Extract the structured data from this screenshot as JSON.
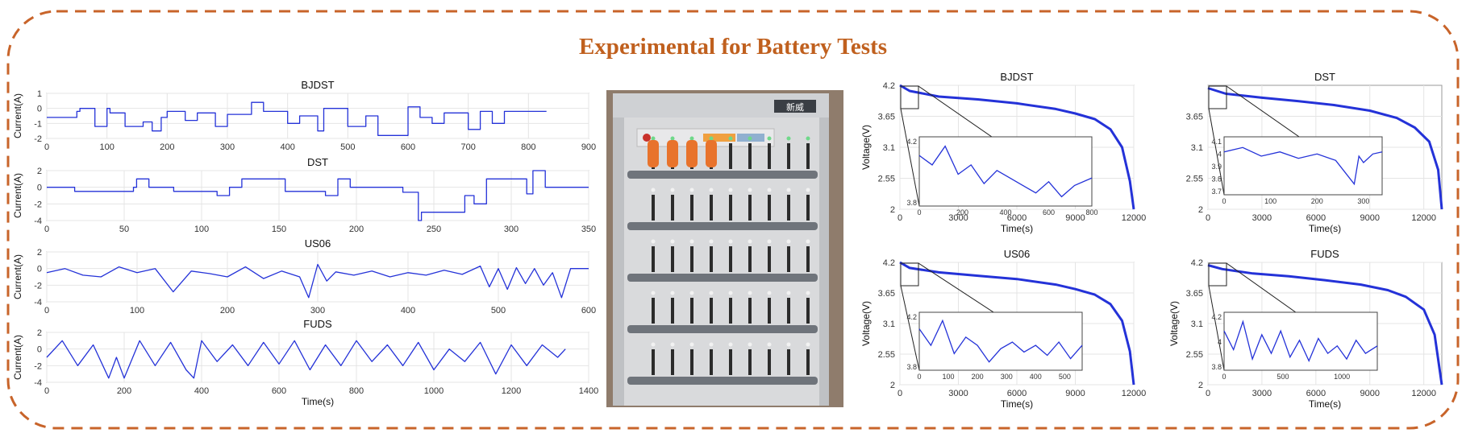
{
  "title": "Experimental for Battery Tests",
  "colors": {
    "border": "#c8642a",
    "title": "#c0601e",
    "trace": "#2432d8",
    "axis": "#333333"
  },
  "photo": {
    "cabinet_label": "新威"
  },
  "chart_data": [
    {
      "type": "line",
      "title": "BJDST",
      "xlabel": "",
      "ylabel": "Current(A)",
      "xlim": [
        0,
        900
      ],
      "xticks": [
        0,
        100,
        200,
        300,
        400,
        500,
        600,
        700,
        800,
        900
      ],
      "ylim": [
        -2,
        1
      ],
      "yticks": [
        1,
        0,
        -1,
        -2
      ],
      "ytick_labels": [
        "1",
        "0",
        "-1",
        "-2"
      ],
      "grid": true,
      "x": [
        0,
        50,
        50,
        55,
        55,
        80,
        80,
        100,
        100,
        105,
        105,
        130,
        130,
        160,
        160,
        175,
        175,
        190,
        190,
        200,
        200,
        230,
        230,
        250,
        250,
        280,
        280,
        300,
        300,
        340,
        340,
        360,
        360,
        400,
        400,
        420,
        420,
        450,
        450,
        460,
        460,
        500,
        500,
        530,
        530,
        550,
        550,
        600,
        600,
        620,
        620,
        640,
        640,
        660,
        660,
        700,
        700,
        720,
        720,
        740,
        740,
        760,
        760,
        830
      ],
      "y": [
        -0.6,
        -0.6,
        -0.2,
        -0.2,
        0,
        0,
        -1.2,
        -1.2,
        0,
        0,
        -0.3,
        -0.3,
        -1.2,
        -1.2,
        -0.9,
        -0.9,
        -1.5,
        -1.5,
        -0.6,
        -0.6,
        -0.2,
        -0.2,
        -0.8,
        -0.8,
        -0.3,
        -0.3,
        -1.2,
        -1.2,
        -0.4,
        -0.4,
        0.4,
        0.4,
        -0.2,
        -0.2,
        -1.0,
        -1.0,
        -0.5,
        -0.5,
        -1.5,
        -1.5,
        0,
        0,
        -1.2,
        -1.2,
        -0.5,
        -0.5,
        -1.8,
        -1.8,
        0.1,
        0.1,
        -0.6,
        -0.6,
        -1.0,
        -1.0,
        -0.3,
        -0.3,
        -1.4,
        -1.4,
        -0.2,
        -0.2,
        -1.0,
        -1.0,
        -0.2,
        -0.2
      ]
    },
    {
      "type": "line",
      "title": "DST",
      "xlabel": "",
      "ylabel": "Current(A)",
      "xlim": [
        0,
        350
      ],
      "xticks": [
        0,
        50,
        100,
        150,
        200,
        250,
        300,
        350
      ],
      "ylim": [
        -4,
        2
      ],
      "yticks": [
        2,
        0,
        -2,
        -4
      ],
      "ytick_labels": [
        "2",
        "0",
        "-2",
        "-4"
      ],
      "grid": true,
      "x": [
        0,
        18,
        18,
        56,
        56,
        58,
        58,
        66,
        66,
        82,
        82,
        110,
        110,
        118,
        118,
        126,
        126,
        154,
        154,
        180,
        180,
        188,
        188,
        196,
        196,
        230,
        230,
        240,
        240,
        242,
        242,
        270,
        270,
        276,
        276,
        284,
        284,
        310,
        310,
        314,
        314,
        322,
        322,
        350
      ],
      "y": [
        0,
        0,
        -0.5,
        -0.5,
        0,
        0,
        1,
        1,
        0,
        0,
        -0.5,
        -0.5,
        -1,
        -1,
        0,
        0,
        1,
        1,
        -0.5,
        -0.5,
        -1,
        -1,
        1,
        1,
        0,
        0,
        -0.6,
        -0.6,
        -4,
        -4,
        -3,
        -3,
        -1,
        -1,
        -2,
        -2,
        1,
        1,
        -0.8,
        -0.8,
        2,
        2,
        0,
        0
      ]
    },
    {
      "type": "line",
      "title": "US06",
      "xlabel": "",
      "ylabel": "Current(A)",
      "xlim": [
        0,
        600
      ],
      "xticks": [
        0,
        100,
        200,
        300,
        400,
        500,
        600
      ],
      "ylim": [
        -4,
        2
      ],
      "yticks": [
        2,
        0,
        -2,
        -4
      ],
      "ytick_labels": [
        "2",
        "0",
        "-2",
        "-4"
      ],
      "grid": true,
      "x": [
        0,
        20,
        40,
        60,
        80,
        100,
        120,
        140,
        160,
        180,
        200,
        220,
        240,
        260,
        280,
        290,
        300,
        310,
        320,
        340,
        360,
        380,
        400,
        420,
        440,
        460,
        480,
        490,
        500,
        510,
        520,
        530,
        540,
        550,
        560,
        570,
        580,
        590,
        600
      ],
      "y": [
        -0.5,
        0,
        -0.8,
        -1,
        0.2,
        -0.5,
        0,
        -2.8,
        -0.3,
        -0.6,
        -1,
        0.2,
        -1.2,
        -0.3,
        -1,
        -3.5,
        0.5,
        -1.5,
        -0.4,
        -0.8,
        -0.3,
        -1,
        -0.5,
        -0.8,
        -0.2,
        -0.7,
        0.3,
        -2.2,
        0,
        -2.5,
        0.1,
        -1.8,
        0,
        -2,
        -0.5,
        -3.5,
        0,
        0,
        0
      ]
    },
    {
      "type": "line",
      "title": "FUDS",
      "xlabel": "Time(s)",
      "ylabel": "Current(A)",
      "xlim": [
        0,
        1400
      ],
      "xticks": [
        0,
        200,
        400,
        600,
        800,
        1000,
        1200,
        1400
      ],
      "ylim": [
        -4,
        2
      ],
      "yticks": [
        2,
        0,
        -2,
        -4
      ],
      "ytick_labels": [
        "2",
        "0",
        "-2",
        "-4"
      ],
      "grid": true,
      "x": [
        0,
        40,
        80,
        120,
        160,
        180,
        200,
        240,
        280,
        320,
        360,
        380,
        400,
        440,
        480,
        520,
        560,
        600,
        640,
        680,
        720,
        760,
        800,
        840,
        880,
        920,
        960,
        1000,
        1040,
        1080,
        1120,
        1160,
        1200,
        1240,
        1280,
        1320,
        1340
      ],
      "y": [
        -1,
        1,
        -2,
        0.5,
        -3.5,
        -1,
        -3.5,
        1,
        -2,
        0.8,
        -2.5,
        -3.5,
        1,
        -1.5,
        0.5,
        -2,
        0.8,
        -1.8,
        1,
        -2.5,
        0.5,
        -2,
        1,
        -1.5,
        0.5,
        -2,
        0.8,
        -2.5,
        0,
        -1.5,
        0.8,
        -3,
        0.5,
        -2,
        0.5,
        -1,
        0
      ]
    },
    {
      "type": "line",
      "title": "BJDST",
      "xlabel": "Time(s)",
      "ylabel": "Voltage(V)",
      "xlim": [
        0,
        12000
      ],
      "xticks": [
        0,
        3000,
        6000,
        9000,
        12000
      ],
      "ylim": [
        2,
        4.2
      ],
      "yticks": [
        4.2,
        3.65,
        3.1,
        2.55,
        2
      ],
      "ytick_labels": [
        "4.2",
        "3.65",
        "3.1",
        "2.55",
        "2"
      ],
      "grid": true,
      "x": [
        0,
        500,
        2000,
        4000,
        6000,
        8000,
        9000,
        10000,
        10800,
        11400,
        11800,
        12000
      ],
      "y": [
        4.2,
        4.1,
        4.0,
        3.95,
        3.88,
        3.78,
        3.7,
        3.6,
        3.42,
        3.1,
        2.5,
        2.0
      ],
      "inset": {
        "xticks": [
          0,
          200,
          400,
          600,
          800
        ],
        "yticks": [
          "4.2",
          "3.8"
        ],
        "x": [
          0,
          60,
          120,
          180,
          240,
          300,
          360,
          420,
          480,
          540,
          600,
          660,
          720,
          800
        ],
        "y": [
          4.0,
          3.95,
          4.05,
          3.9,
          3.95,
          3.85,
          3.92,
          3.88,
          3.84,
          3.8,
          3.86,
          3.78,
          3.84,
          3.88
        ]
      }
    },
    {
      "type": "line",
      "title": "DST",
      "xlabel": "Time(s)",
      "ylabel": "",
      "xlim": [
        0,
        13000
      ],
      "xticks": [
        0,
        3000,
        6000,
        9000,
        12000
      ],
      "ylim": [
        2,
        4.2
      ],
      "yticks": [
        3.65,
        3.1,
        2.55,
        2
      ],
      "ytick_labels": [
        "3.65",
        "3.1",
        "2.55",
        "2"
      ],
      "grid": true,
      "x": [
        0,
        1000,
        3000,
        5000,
        7000,
        9000,
        10500,
        11500,
        12300,
        12800,
        13000
      ],
      "y": [
        4.15,
        4.05,
        3.98,
        3.92,
        3.85,
        3.75,
        3.62,
        3.45,
        3.2,
        2.7,
        2.0
      ],
      "inset": {
        "xticks": [
          0,
          100,
          200,
          300
        ],
        "yticks": [
          "4.1",
          "4",
          "3.9",
          "3.8",
          "3.7"
        ],
        "x": [
          0,
          40,
          80,
          120,
          160,
          200,
          240,
          280,
          290,
          300,
          320,
          340
        ],
        "y": [
          4.0,
          4.02,
          3.98,
          4.0,
          3.97,
          3.99,
          3.96,
          3.85,
          3.98,
          3.95,
          3.99,
          4.0
        ]
      }
    },
    {
      "type": "line",
      "title": "US06",
      "xlabel": "Time(s)",
      "ylabel": "Voltage(V)",
      "xlim": [
        0,
        12000
      ],
      "xticks": [
        0,
        3000,
        6000,
        9000,
        12000
      ],
      "ylim": [
        2,
        4.2
      ],
      "yticks": [
        4.2,
        3.65,
        3.1,
        2.55,
        2
      ],
      "ytick_labels": [
        "4.2",
        "3.65",
        "3.1",
        "2.55",
        "2"
      ],
      "grid": true,
      "x": [
        0,
        500,
        2000,
        4000,
        6000,
        8000,
        9000,
        10000,
        10800,
        11400,
        11800,
        12000
      ],
      "y": [
        4.2,
        4.1,
        4.02,
        3.96,
        3.9,
        3.8,
        3.72,
        3.62,
        3.45,
        3.15,
        2.6,
        2.0
      ],
      "inset": {
        "xticks": [
          0,
          100,
          200,
          300,
          400,
          500
        ],
        "yticks": [
          "4.2",
          "3.8"
        ],
        "x": [
          0,
          40,
          80,
          120,
          160,
          200,
          240,
          280,
          320,
          360,
          400,
          440,
          480,
          520,
          560
        ],
        "y": [
          4.0,
          3.9,
          4.05,
          3.85,
          3.95,
          3.9,
          3.8,
          3.88,
          3.92,
          3.86,
          3.9,
          3.84,
          3.92,
          3.82,
          3.9
        ]
      }
    },
    {
      "type": "line",
      "title": "FUDS",
      "xlabel": "Time(s)",
      "ylabel": "Voltage(V)",
      "xlim": [
        0,
        13000
      ],
      "xticks": [
        0,
        3000,
        6000,
        9000,
        12000
      ],
      "ylim": [
        2,
        4.2
      ],
      "yticks": [
        4.2,
        3.65,
        3.1,
        2.55,
        2
      ],
      "ytick_labels": [
        "4.2",
        "3.65",
        "3.1",
        "2.55",
        "2"
      ],
      "grid": true,
      "x": [
        0,
        800,
        2500,
        4500,
        6500,
        8500,
        10000,
        11000,
        12000,
        12600,
        13000
      ],
      "y": [
        4.15,
        4.08,
        4.0,
        3.95,
        3.88,
        3.8,
        3.7,
        3.58,
        3.35,
        2.9,
        2.0
      ],
      "inset": {
        "xticks": [
          0,
          500,
          1000
        ],
        "yticks": [
          "4.2",
          "4",
          "3.8"
        ],
        "x": [
          0,
          80,
          160,
          240,
          320,
          400,
          480,
          560,
          640,
          720,
          800,
          880,
          960,
          1040,
          1120,
          1200,
          1300
        ],
        "y": [
          4.0,
          3.9,
          4.05,
          3.85,
          3.98,
          3.88,
          4.0,
          3.86,
          3.95,
          3.84,
          3.96,
          3.88,
          3.92,
          3.85,
          3.95,
          3.88,
          3.92
        ]
      }
    }
  ]
}
